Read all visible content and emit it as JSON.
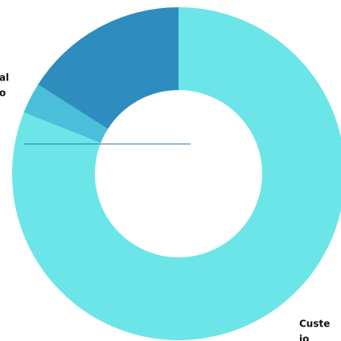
{
  "chart_data": {
    "type": "donut",
    "categories": [
      [
        "Custe",
        "io"
      ],
      null,
      [
        "al",
        "o"
      ]
    ],
    "values": [
      81,
      3,
      16
    ],
    "colors": [
      "#6ce5e8",
      "#4bbfd9",
      "#2e8cbf"
    ]
  }
}
